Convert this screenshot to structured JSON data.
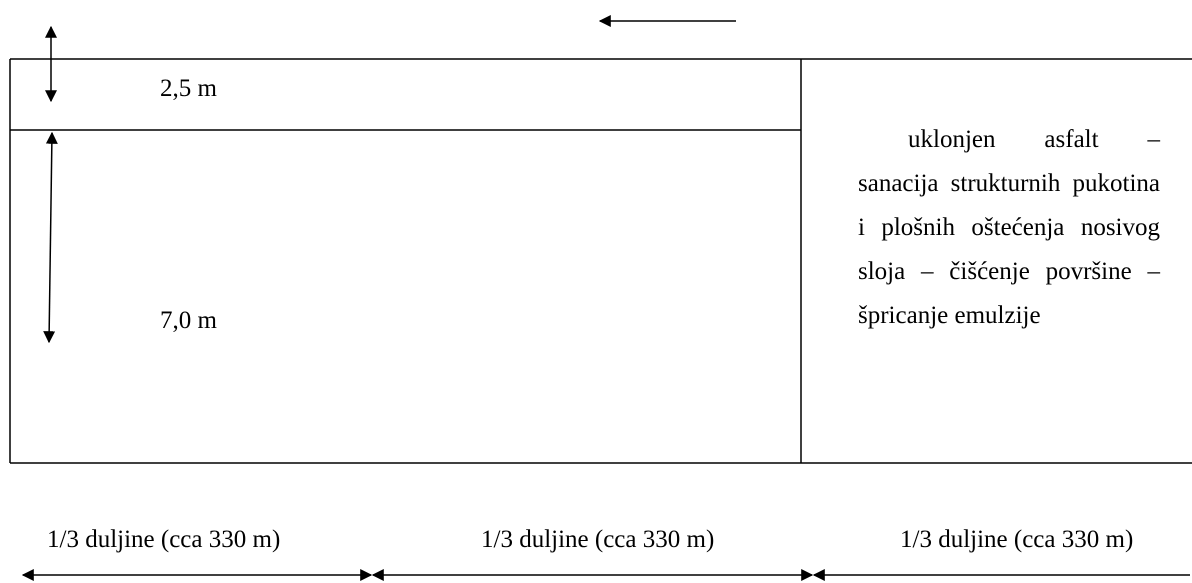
{
  "lanes": {
    "top_width": "2,5 m",
    "bottom_width": "7,0 m"
  },
  "description": "uklonjen asfalt – sanacija strukturnih pukotina i plošnih oštećenja nosivog sloja – čišćenje površine – špricanje emulzije",
  "segments": [
    {
      "label": "1/3 duljine (cca 330 m)"
    },
    {
      "label": "1/3 duljine (cca 330 m)"
    },
    {
      "label": "1/3 duljine (cca 330 m)"
    }
  ],
  "colors": {
    "line": "#000000",
    "background": "#ffffff"
  }
}
